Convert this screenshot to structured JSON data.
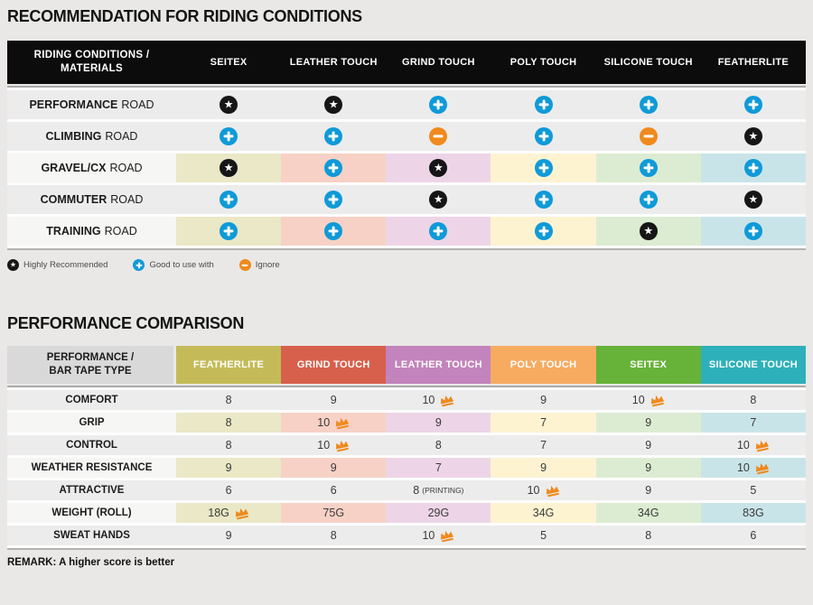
{
  "recommendation_table": {
    "title": "RECOMMENDATION FOR RIDING CONDITIONS",
    "corner_header": "RIDING CONDITIONS / MATERIALS",
    "columns": [
      "SEITEX",
      "LEATHER TOUCH",
      "GRIND TOUCH",
      "POLY TOUCH",
      "SILICONE TOUCH",
      "FEATHERLITE"
    ],
    "rows": [
      {
        "label_bold": "PERFORMANCE",
        "label_rest": "ROAD",
        "tinted": false,
        "cells": [
          "star",
          "star",
          "plus",
          "plus",
          "plus",
          "plus"
        ]
      },
      {
        "label_bold": "CLIMBING",
        "label_rest": "ROAD",
        "tinted": false,
        "cells": [
          "plus",
          "plus",
          "minus",
          "plus",
          "minus",
          "star"
        ]
      },
      {
        "label_bold": "GRAVEL/CX",
        "label_rest": "ROAD",
        "tinted": true,
        "cells": [
          "star",
          "plus",
          "star",
          "plus",
          "plus",
          "plus"
        ]
      },
      {
        "label_bold": "COMMUTER",
        "label_rest": "ROAD",
        "tinted": false,
        "cells": [
          "plus",
          "plus",
          "star",
          "plus",
          "plus",
          "star"
        ]
      },
      {
        "label_bold": "TRAINING",
        "label_rest": "ROAD",
        "tinted": true,
        "cells": [
          "plus",
          "plus",
          "plus",
          "plus",
          "star",
          "plus"
        ]
      }
    ],
    "legend": [
      {
        "icon": "star-icon",
        "label": "Highly Recommended"
      },
      {
        "icon": "plus-icon",
        "label": "Good to use with"
      },
      {
        "icon": "minus-icon",
        "label": "Ignore"
      }
    ]
  },
  "performance_table": {
    "title": "PERFORMANCE COMPARISON",
    "corner_header": "PERFORMANCE / BAR TAPE TYPE",
    "columns": [
      {
        "label": "FEATHERLITE",
        "color": "#c4bb58"
      },
      {
        "label": "GRIND TOUCH",
        "color": "#d7604c"
      },
      {
        "label": "LEATHER TOUCH",
        "color": "#c383bc"
      },
      {
        "label": "POLY TOUCH",
        "color": "#f6ab61"
      },
      {
        "label": "SEITEX",
        "color": "#67b239"
      },
      {
        "label": "SILICONE TOUCH",
        "color": "#2eb0ba"
      }
    ],
    "rows": [
      {
        "label": "COMFORT",
        "tinted": false,
        "cells": [
          {
            "value": "8"
          },
          {
            "value": "9"
          },
          {
            "value": "10",
            "crown": true
          },
          {
            "value": "9"
          },
          {
            "value": "10",
            "crown": true
          },
          {
            "value": "8"
          }
        ]
      },
      {
        "label": "GRIP",
        "tinted": true,
        "cells": [
          {
            "value": "8"
          },
          {
            "value": "10",
            "crown": true
          },
          {
            "value": "9"
          },
          {
            "value": "7"
          },
          {
            "value": "9"
          },
          {
            "value": "7"
          }
        ]
      },
      {
        "label": "CONTROL",
        "tinted": false,
        "cells": [
          {
            "value": "8"
          },
          {
            "value": "10",
            "crown": true
          },
          {
            "value": "8"
          },
          {
            "value": "7"
          },
          {
            "value": "9"
          },
          {
            "value": "10",
            "crown": true
          }
        ]
      },
      {
        "label": "WEATHER RESISTANCE",
        "tinted": true,
        "cells": [
          {
            "value": "9"
          },
          {
            "value": "9"
          },
          {
            "value": "7"
          },
          {
            "value": "9"
          },
          {
            "value": "9"
          },
          {
            "value": "10",
            "crown": true
          }
        ]
      },
      {
        "label": "ATTRACTIVE",
        "tinted": false,
        "cells": [
          {
            "value": "6"
          },
          {
            "value": "6"
          },
          {
            "value": "8",
            "suffix": "(PRINTING)"
          },
          {
            "value": "10",
            "crown": true
          },
          {
            "value": "9"
          },
          {
            "value": "5"
          }
        ]
      },
      {
        "label": "WEIGHT (ROLL)",
        "tinted": true,
        "cells": [
          {
            "value": "18G",
            "crown": true
          },
          {
            "value": "75G"
          },
          {
            "value": "29G"
          },
          {
            "value": "34G"
          },
          {
            "value": "34G"
          },
          {
            "value": "83G"
          }
        ]
      },
      {
        "label": "SWEAT HANDS",
        "tinted": false,
        "cells": [
          {
            "value": "9"
          },
          {
            "value": "8"
          },
          {
            "value": "10",
            "crown": true
          },
          {
            "value": "5"
          },
          {
            "value": "8"
          },
          {
            "value": "6"
          }
        ]
      }
    ],
    "remark": "REMARK: A higher score is better"
  },
  "colors": {
    "column_tints": [
      "#eae8c6",
      "#f7d1c6",
      "#edd5e7",
      "#fdf3d1",
      "#dcecd2",
      "#c9e4e9"
    ],
    "star_icon_bg": "#161616",
    "plus_icon_bg": "#0f9ad8",
    "minus_icon_bg": "#ef8a1e",
    "crown_icon": "#ee8a1d",
    "table1_header_bg": "#0c0c0c",
    "table2_corner_bg": "#d9d9d9"
  },
  "chart_data": [
    {
      "type": "table",
      "title": "RECOMMENDATION FOR RIDING CONDITIONS",
      "row_header": "RIDING CONDITIONS / MATERIALS",
      "columns": [
        "SEITEX",
        "LEATHER TOUCH",
        "GRIND TOUCH",
        "POLY TOUCH",
        "SILICONE TOUCH",
        "FEATHERLITE"
      ],
      "rows": [
        "PERFORMANCE ROAD",
        "CLIMBING ROAD",
        "GRAVEL/CX ROAD",
        "COMMUTER ROAD",
        "TRAINING ROAD"
      ],
      "values": [
        [
          "highly-recommended",
          "highly-recommended",
          "good-to-use-with",
          "good-to-use-with",
          "good-to-use-with",
          "good-to-use-with"
        ],
        [
          "good-to-use-with",
          "good-to-use-with",
          "ignore",
          "good-to-use-with",
          "ignore",
          "highly-recommended"
        ],
        [
          "highly-recommended",
          "good-to-use-with",
          "highly-recommended",
          "good-to-use-with",
          "good-to-use-with",
          "good-to-use-with"
        ],
        [
          "good-to-use-with",
          "good-to-use-with",
          "highly-recommended",
          "good-to-use-with",
          "good-to-use-with",
          "highly-recommended"
        ],
        [
          "good-to-use-with",
          "good-to-use-with",
          "good-to-use-with",
          "good-to-use-with",
          "highly-recommended",
          "good-to-use-with"
        ]
      ],
      "legend": [
        "Highly Recommended",
        "Good to use with",
        "Ignore"
      ]
    },
    {
      "type": "table",
      "title": "PERFORMANCE COMPARISON",
      "row_header": "PERFORMANCE / BAR TAPE TYPE",
      "columns": [
        "FEATHERLITE",
        "GRIND TOUCH",
        "LEATHER TOUCH",
        "POLY TOUCH",
        "SEITEX",
        "SILICONE TOUCH"
      ],
      "rows": [
        "COMFORT",
        "GRIP",
        "CONTROL",
        "WEATHER RESISTANCE",
        "ATTRACTIVE",
        "WEIGHT (ROLL)",
        "SWEAT HANDS"
      ],
      "values": [
        [
          "8",
          "9",
          "10 (best)",
          "9",
          "10 (best)",
          "8"
        ],
        [
          "8",
          "10 (best)",
          "9",
          "7",
          "9",
          "7"
        ],
        [
          "8",
          "10 (best)",
          "8",
          "7",
          "9",
          "10 (best)"
        ],
        [
          "9",
          "9",
          "7",
          "9",
          "9",
          "10 (best)"
        ],
        [
          "6",
          "6",
          "8 (PRINTING)",
          "10 (best)",
          "9",
          "5"
        ],
        [
          "18G (best)",
          "75G",
          "29G",
          "34G",
          "34G",
          "83G"
        ],
        [
          "9",
          "8",
          "10 (best)",
          "5",
          "8",
          "6"
        ]
      ],
      "remark": "REMARK: A higher score is better"
    }
  ]
}
